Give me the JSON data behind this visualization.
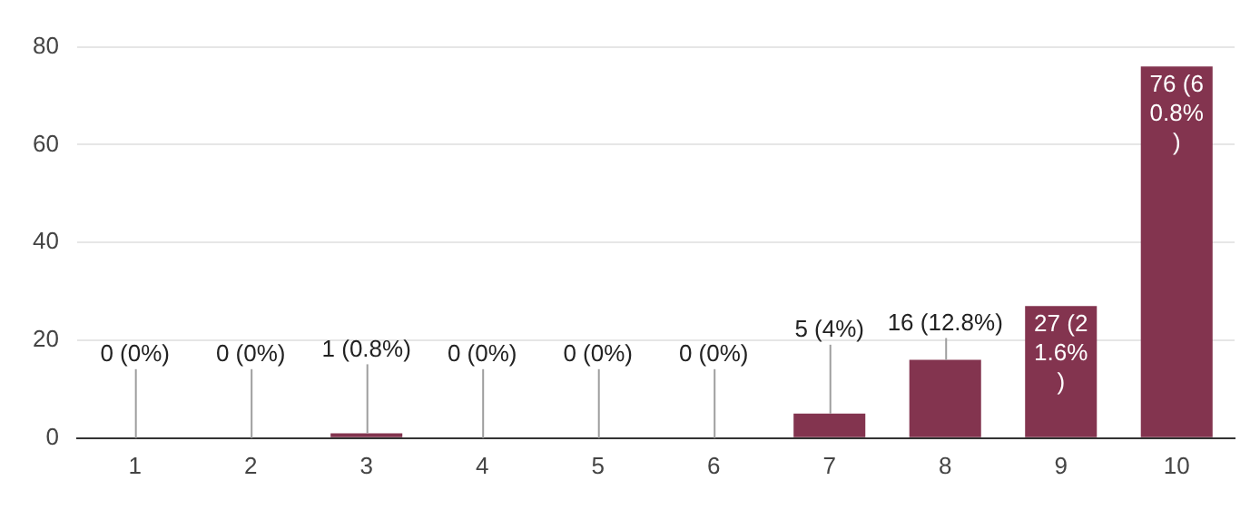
{
  "chart_data": {
    "type": "bar",
    "categories": [
      "1",
      "2",
      "3",
      "4",
      "5",
      "6",
      "7",
      "8",
      "9",
      "10"
    ],
    "values": [
      0,
      0,
      1,
      0,
      0,
      0,
      5,
      16,
      27,
      76
    ],
    "value_labels": [
      "0 (0%)",
      "0 (0%)",
      "1 (0.8%)",
      "0 (0%)",
      "0 (0%)",
      "0 (0%)",
      "5 (4%)",
      "16 (12.8%)",
      "27 (21.6%)",
      "76 (60.8%)"
    ],
    "color": "#83344f",
    "ylim": [
      0,
      80
    ],
    "yticks": [
      0,
      20,
      40,
      60,
      80
    ],
    "grid": "y",
    "legend": false
  }
}
